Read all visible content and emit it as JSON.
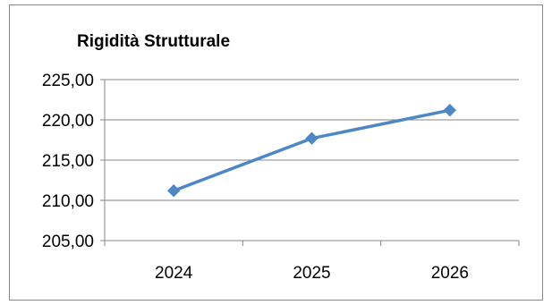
{
  "chart_data": {
    "type": "line",
    "title": "Rigidità Strutturale",
    "categories": [
      "2024",
      "2025",
      "2026"
    ],
    "series": [
      {
        "values": [
          211.2,
          217.7,
          221.2
        ]
      }
    ],
    "ylim": [
      205,
      225
    ],
    "yticks": [
      205,
      210,
      215,
      220,
      225
    ],
    "ytick_labels": [
      "205,00",
      "210,00",
      "215,00",
      "220,00",
      "225,00"
    ],
    "xlabel": "",
    "ylabel": "",
    "grid": true,
    "legend": "none",
    "series_color": "#4F87C6",
    "grid_color": "#878787"
  }
}
